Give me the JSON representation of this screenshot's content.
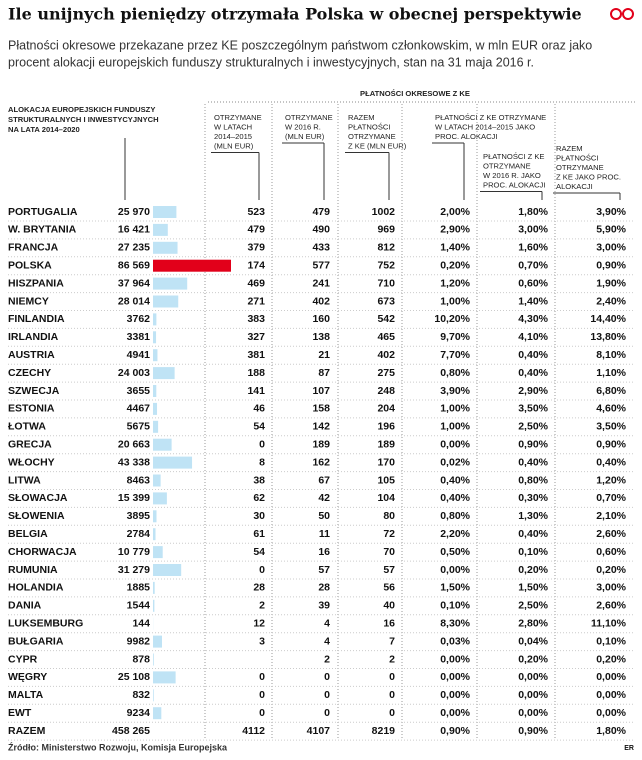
{
  "title": "Ile unijnych pieniędzy otrzymała Polska  w obecnej perspektywie",
  "subtitle": [
    "Płatności okresowe przekazane przez KE poszczególnym państwom członkowskim, w mln EUR oraz jako",
    "procent alokacji europejskich funduszy strukturalnych i inwestycyjnych, stan na 31 maja 2016 r."
  ],
  "allocation_header": [
    "ALOKACJA EUROPEJSKICH FUNDUSZY",
    "STRUKTURALNYCH I INWESTYCYJNYCH",
    "NA LATA 2014–2020"
  ],
  "payments_header": "PŁATNOŚCI OKRESOWE Z KE",
  "columns": [
    [
      "OTRZYMANE",
      "W LATACH",
      "2014–2015",
      "(MLN EUR)"
    ],
    [
      "OTRZYMANE",
      "W 2016 R.",
      "(MLN EUR)"
    ],
    [
      "RAZEM",
      "PŁATNOŚCI",
      "OTRZYMANE",
      "Z KE (MLN EUR)"
    ],
    [
      "PŁATNOŚCI Z KE OTRZYMANE",
      "W LATACH 2014–2015 JAKO",
      "PROC. ALOKACJI"
    ],
    [
      "PŁATNOŚCI Z KE",
      "OTRZYMANE",
      "W 2016 R. JAKO",
      "PROC. ALOKACJI"
    ],
    [
      "RAZEM",
      "PŁATNOŚCI",
      "OTRZYMANE",
      "Z KE JAKO PROC.",
      "ALOKACJI"
    ]
  ],
  "bar_color": "#bfe3f5",
  "label_color": "#29a8e0",
  "highlight_color": "#e2001a",
  "highlight_row": 3,
  "rows": [
    {
      "country": "PORTUGALIA",
      "allocation": 25970,
      "allocation_label": "25 970",
      "values": [
        523,
        479,
        1002,
        "2,00%",
        "1,80%",
        "3,90%"
      ]
    },
    {
      "country": "W. BRYTANIA",
      "allocation": 16421,
      "allocation_label": "16 421",
      "values": [
        479,
        490,
        969,
        "2,90%",
        "3,00%",
        "5,90%"
      ]
    },
    {
      "country": "FRANCJA",
      "allocation": 27235,
      "allocation_label": "27 235",
      "values": [
        379,
        433,
        812,
        "1,40%",
        "1,60%",
        "3,00%"
      ]
    },
    {
      "country": "POLSKA",
      "allocation": 86569,
      "allocation_label": "86 569",
      "values": [
        174,
        577,
        752,
        "0,20%",
        "0,70%",
        "0,90%"
      ]
    },
    {
      "country": "HISZPANIA",
      "allocation": 37964,
      "allocation_label": "37 964",
      "values": [
        469,
        241,
        710,
        "1,20%",
        "0,60%",
        "1,90%"
      ]
    },
    {
      "country": "NIEMCY",
      "allocation": 28014,
      "allocation_label": "28 014",
      "values": [
        271,
        402,
        673,
        "1,00%",
        "1,40%",
        "2,40%"
      ]
    },
    {
      "country": "FINLANDIA",
      "allocation": 3762,
      "allocation_label": "3762",
      "values": [
        383,
        160,
        542,
        "10,20%",
        "4,30%",
        "14,40%"
      ]
    },
    {
      "country": "IRLANDIA",
      "allocation": 3381,
      "allocation_label": "3381",
      "values": [
        327,
        138,
        465,
        "9,70%",
        "4,10%",
        "13,80%"
      ]
    },
    {
      "country": "AUSTRIA",
      "allocation": 4941,
      "allocation_label": "4941",
      "values": [
        381,
        21,
        402,
        "7,70%",
        "0,40%",
        "8,10%"
      ]
    },
    {
      "country": "CZECHY",
      "allocation": 24003,
      "allocation_label": "24 003",
      "values": [
        188,
        87,
        275,
        "0,80%",
        "0,40%",
        "1,10%"
      ]
    },
    {
      "country": "SZWECJA",
      "allocation": 3655,
      "allocation_label": "3655",
      "values": [
        141,
        107,
        248,
        "3,90%",
        "2,90%",
        "6,80%"
      ]
    },
    {
      "country": "ESTONIA",
      "allocation": 4467,
      "allocation_label": "4467",
      "values": [
        46,
        158,
        204,
        "1,00%",
        "3,50%",
        "4,60%"
      ]
    },
    {
      "country": "ŁOTWA",
      "allocation": 5675,
      "allocation_label": "5675",
      "values": [
        54,
        142,
        196,
        "1,00%",
        "2,50%",
        "3,50%"
      ]
    },
    {
      "country": "GRECJA",
      "allocation": 20663,
      "allocation_label": "20 663",
      "values": [
        0,
        189,
        189,
        "0,00%",
        "0,90%",
        "0,90%"
      ]
    },
    {
      "country": "WŁOCHY",
      "allocation": 43338,
      "allocation_label": "43 338",
      "values": [
        8,
        162,
        170,
        "0,02%",
        "0,40%",
        "0,40%"
      ]
    },
    {
      "country": "LITWA",
      "allocation": 8463,
      "allocation_label": "8463",
      "values": [
        38,
        67,
        105,
        "0,40%",
        "0,80%",
        "1,20%"
      ]
    },
    {
      "country": "SŁOWACJA",
      "allocation": 15399,
      "allocation_label": "15 399",
      "values": [
        62,
        42,
        104,
        "0,40%",
        "0,30%",
        "0,70%"
      ]
    },
    {
      "country": "SŁOWENIA",
      "allocation": 3895,
      "allocation_label": "3895",
      "values": [
        30,
        50,
        80,
        "0,80%",
        "1,30%",
        "2,10%"
      ]
    },
    {
      "country": "BELGIA",
      "allocation": 2784,
      "allocation_label": "2784",
      "values": [
        61,
        11,
        72,
        "2,20%",
        "0,40%",
        "2,60%"
      ]
    },
    {
      "country": "CHORWACJA",
      "allocation": 10779,
      "allocation_label": "10 779",
      "values": [
        54,
        16,
        70,
        "0,50%",
        "0,10%",
        "0,60%"
      ]
    },
    {
      "country": "RUMUNIA",
      "allocation": 31279,
      "allocation_label": "31 279",
      "values": [
        0,
        57,
        57,
        "0,00%",
        "0,20%",
        "0,20%"
      ]
    },
    {
      "country": "HOLANDIA",
      "allocation": 1885,
      "allocation_label": "1885",
      "values": [
        28,
        28,
        56,
        "1,50%",
        "1,50%",
        "3,00%"
      ]
    },
    {
      "country": "DANIA",
      "allocation": 1544,
      "allocation_label": "1544",
      "values": [
        2,
        39,
        40,
        "0,10%",
        "2,50%",
        "2,60%"
      ]
    },
    {
      "country": "LUKSEMBURG",
      "allocation": 144,
      "allocation_label": "144",
      "values": [
        12,
        4,
        16,
        "8,30%",
        "2,80%",
        "11,10%"
      ]
    },
    {
      "country": "BUŁGARIA",
      "allocation": 9982,
      "allocation_label": "9982",
      "values": [
        3,
        4,
        7,
        "0,03%",
        "0,04%",
        "0,10%"
      ]
    },
    {
      "country": "CYPR",
      "allocation": 878,
      "allocation_label": "878",
      "values": [
        null,
        2,
        2,
        "0,00%",
        "0,20%",
        "0,20%"
      ]
    },
    {
      "country": "WĘGRY",
      "allocation": 25108,
      "allocation_label": "25 108",
      "values": [
        0,
        0,
        0,
        "0,00%",
        "0,00%",
        "0,00%"
      ]
    },
    {
      "country": "MALTA",
      "allocation": 832,
      "allocation_label": "832",
      "values": [
        0,
        0,
        0,
        "0,00%",
        "0,00%",
        "0,00%"
      ]
    },
    {
      "country": "EWT",
      "allocation": 9234,
      "allocation_label": "9234",
      "values": [
        0,
        0,
        0,
        "0,00%",
        "0,00%",
        "0,00%"
      ]
    }
  ],
  "total": {
    "country": "RAZEM",
    "allocation": 458265,
    "allocation_label": "458 265",
    "values": [
      4112,
      4107,
      8219,
      "0,90%",
      "0,90%",
      "1,80%"
    ]
  },
  "source": "Źródło: Ministerstwo Rozwoju, Komisja Europejska",
  "credit": "ER"
}
